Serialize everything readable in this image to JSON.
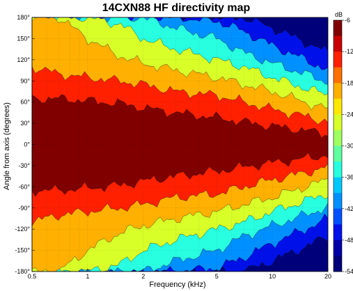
{
  "chart_data": {
    "type": "heatmap",
    "title": "14CXN88 HF directivity map",
    "xlabel": "Frequency (kHz)",
    "ylabel": "Angle from axis (degrees)",
    "x_scale": "log",
    "xlim": [
      0.5,
      20
    ],
    "ylim": [
      -180,
      180
    ],
    "x_ticks": [
      0.5,
      1,
      2,
      5,
      10,
      20
    ],
    "x_tick_labels": [
      "0.5",
      "1",
      "2",
      "5",
      "10",
      "20"
    ],
    "y_ticks": [
      180,
      150,
      120,
      90,
      60,
      30,
      0,
      -30,
      -60,
      -90,
      -120,
      -150,
      -180
    ],
    "y_tick_labels": [
      "180°",
      "150°",
      "120°",
      "90°",
      "60°",
      "30°",
      "0°",
      "-30°",
      "-60°",
      "-90°",
      "-120°",
      "-150°",
      "-180°"
    ],
    "grid": true,
    "colorbar": {
      "unit_label": "dB",
      "range": [
        -54,
        -6
      ],
      "ticks": [
        -6,
        -12,
        -18,
        -24,
        -30,
        -36,
        -42,
        -48,
        -54
      ],
      "tick_labels": [
        "-6",
        "-12",
        "-18",
        "-24",
        "-30",
        "-36",
        "-42",
        "-48",
        "-54"
      ],
      "levels_top_to_bottom": [
        "#800000",
        "#c80000",
        "#ff2000",
        "#ff7000",
        "#ffb000",
        "#ffe800",
        "#d8ff28",
        "#a0ff60",
        "#60ffa0",
        "#28ffe0",
        "#00c8ff",
        "#0090ff",
        "#0050ff",
        "#0010e8",
        "#0000a8",
        "#00007a"
      ],
      "level_values": [
        -6,
        -9,
        -12,
        -15,
        -18,
        -21,
        -24,
        -27,
        -30,
        -33,
        -36,
        -39,
        -42,
        -45,
        -48,
        -51
      ]
    },
    "contour_boundaries_deg_by_freq": {
      "freq_khz": [
        0.5,
        0.7,
        1,
        1.5,
        2,
        3,
        5,
        7,
        10,
        15,
        20
      ],
      "level_-6_edge": [
        65,
        65,
        62,
        58,
        52,
        45,
        38,
        32,
        26,
        20,
        15
      ],
      "level_-12_edge": [
        110,
        100,
        95,
        90,
        85,
        75,
        70,
        60,
        50,
        40,
        32
      ],
      "level_-18_edge": [
        180,
        180,
        150,
        125,
        115,
        105,
        95,
        85,
        75,
        60,
        50
      ],
      "level_-24_edge": [
        180,
        180,
        180,
        170,
        150,
        135,
        120,
        110,
        95,
        80,
        70
      ],
      "level_-30_edge": [
        180,
        180,
        180,
        180,
        180,
        165,
        150,
        130,
        115,
        100,
        88
      ],
      "level_-36_edge": [
        180,
        180,
        180,
        180,
        180,
        180,
        175,
        160,
        140,
        120,
        105
      ],
      "level_-42_edge": [
        180,
        180,
        180,
        180,
        180,
        180,
        180,
        180,
        165,
        145,
        130
      ]
    }
  }
}
